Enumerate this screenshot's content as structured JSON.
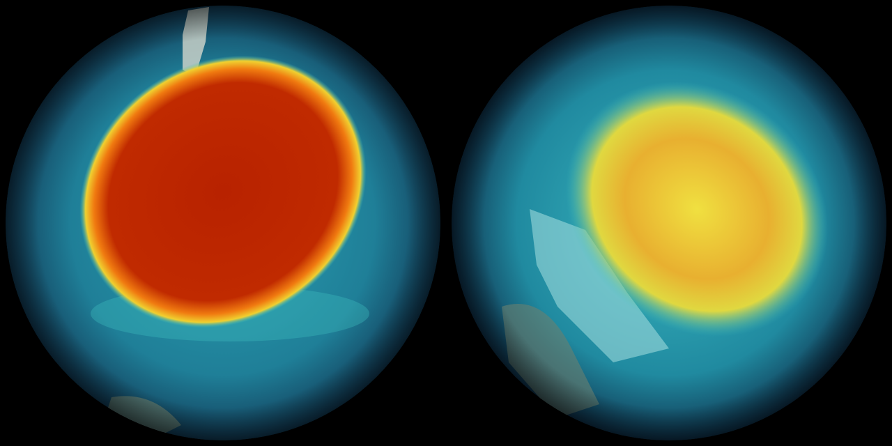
{
  "scene": {
    "background": "#000000",
    "globes": [
      {
        "label": "",
        "ocean": "#1a5f80",
        "swirl": "#2bb0b8",
        "hole_core": "#b82200",
        "hole_ring": "#f0a020",
        "land": "#c8d0c8"
      },
      {
        "label": "",
        "ocean": "#1a5f80",
        "swirl": "#30b8c0",
        "hole_core": "#e8c030",
        "hole_ring": "#e0e040",
        "land": "#a8e0e0"
      }
    ]
  }
}
